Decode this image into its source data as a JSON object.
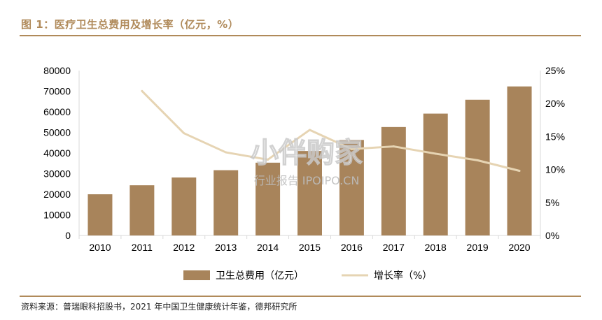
{
  "figure": {
    "title": "图 1：医疗卫生总费用及增长率（亿元，%）",
    "source": "资料来源：普瑞眼科招股书，2021 年中国卫生健康统计年鉴，德邦研究所",
    "watermark": {
      "main": "小伴购家",
      "sub": "行业报告 IPOIPO.CN"
    }
  },
  "colors": {
    "bar": "#a8845b",
    "line": "#e6d4b3",
    "accent": "#b08a5a",
    "axis": "#d9d9d9",
    "text": "#000000"
  },
  "chart_data": {
    "type": "bar",
    "categories": [
      "2010",
      "2011",
      "2012",
      "2013",
      "2014",
      "2015",
      "2016",
      "2017",
      "2018",
      "2019",
      "2020"
    ],
    "series": [
      {
        "name": "卫生总费用（亿元）",
        "type": "bar",
        "axis": "left",
        "values": [
          19980,
          24346,
          28119,
          31669,
          35312,
          40975,
          46345,
          52598,
          59122,
          65841,
          72306
        ]
      },
      {
        "name": "增长率（%）",
        "type": "line",
        "axis": "right",
        "values": [
          null,
          21.9,
          15.5,
          12.6,
          11.5,
          16.0,
          13.1,
          13.5,
          12.4,
          11.4,
          9.8
        ]
      }
    ],
    "y_left": {
      "min": 0,
      "max": 80000,
      "ticks": [
        "0",
        "10000",
        "20000",
        "30000",
        "40000",
        "50000",
        "60000",
        "70000",
        "80000"
      ]
    },
    "y_right": {
      "min": 0,
      "max": 25,
      "ticks": [
        "0%",
        "5%",
        "10%",
        "15%",
        "20%",
        "25%"
      ]
    },
    "legend_position": "bottom",
    "grid": false
  }
}
